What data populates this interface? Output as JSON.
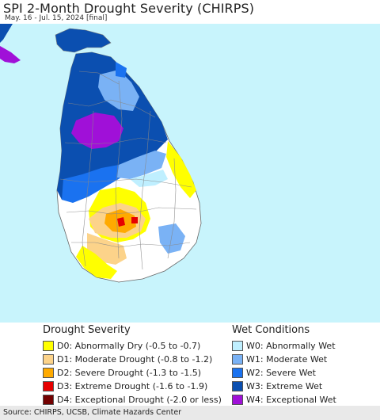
{
  "header": {
    "title": "SPI 2-Month Drought Severity (CHIRPS)",
    "subtitle": "May. 16 - Jul. 15, 2024 [final]"
  },
  "legend": {
    "drought_title": "Drought Severity",
    "wet_title": "Wet Conditions",
    "drought_items": [
      {
        "label": "D0: Abnormally Dry (-0.5 to -0.7)",
        "color": "#ffff00"
      },
      {
        "label": "D1: Moderate Drought (-0.8 to -1.2)",
        "color": "#fcd38a"
      },
      {
        "label": "D2: Severe Drought (-1.3 to -1.5)",
        "color": "#ffaa00"
      },
      {
        "label": "D3: Extreme Drought (-1.6 to -1.9)",
        "color": "#e60000"
      },
      {
        "label": "D4: Exceptional Drought (-2.0 or less)",
        "color": "#730000"
      }
    ],
    "wet_items": [
      {
        "label": "W0: Abnormally Wet",
        "color": "#bfefff"
      },
      {
        "label": "W1: Moderate Wet",
        "color": "#7ab2f5"
      },
      {
        "label": "W2: Severe Wet",
        "color": "#1a72f0"
      },
      {
        "label": "W3: Extreme Wet",
        "color": "#0b4fb0"
      },
      {
        "label": "W4: Exceptional Wet",
        "color": "#a010d8"
      }
    ]
  },
  "map": {
    "land_color": "#ffffff",
    "sea_color": "#c8f4fc",
    "border_color": "#888888"
  },
  "footer": {
    "source": "Source: CHIRPS, UCSB, Climate Hazards Center"
  }
}
